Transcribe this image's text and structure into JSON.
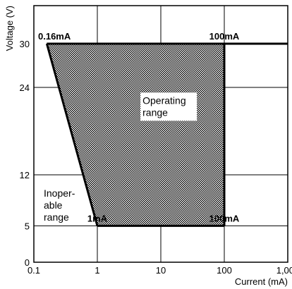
{
  "chart_data": {
    "type": "area",
    "xlabel": "Current (mA)",
    "ylabel": "Voltage (V)",
    "x_scale": "log",
    "xlim": [
      0.1,
      1000
    ],
    "ylim": [
      0,
      30
    ],
    "x_ticks": [
      {
        "value": 0.1,
        "label": "0.1"
      },
      {
        "value": 1,
        "label": "1"
      },
      {
        "value": 10,
        "label": "10"
      },
      {
        "value": 100,
        "label": "100"
      },
      {
        "value": 1000,
        "label": "1,000"
      }
    ],
    "y_ticks": [
      {
        "value": 0,
        "label": "0"
      },
      {
        "value": 5,
        "label": "5"
      },
      {
        "value": 12,
        "label": "12"
      },
      {
        "value": 24,
        "label": "24"
      },
      {
        "value": 30,
        "label": "30"
      }
    ],
    "grid": true,
    "operating_region": {
      "points": [
        {
          "x": 0.16,
          "y": 30
        },
        {
          "x": 100,
          "y": 30
        },
        {
          "x": 100,
          "y": 5
        },
        {
          "x": 1,
          "y": 5
        }
      ],
      "fill": "crosshatch"
    },
    "boundary_line": {
      "x": [
        0.16,
        1000
      ],
      "y": [
        30,
        30
      ]
    },
    "annotations": [
      {
        "text": "0.16mA",
        "x": 0.16,
        "y": 30
      },
      {
        "text": "100mA",
        "x": 100,
        "y": 30
      },
      {
        "text": "1mA",
        "x": 1,
        "y": 5
      },
      {
        "text": "100mA",
        "x": 100,
        "y": 5
      }
    ],
    "region_labels": {
      "operating_line1": "Operating",
      "operating_line2": "range",
      "inoperable_line1": "Inoper-",
      "inoperable_line2": "able",
      "inoperable_line3": "range"
    },
    "colors": {
      "line": "#000000",
      "background": "#ffffff",
      "label_box": "#ffffff"
    }
  }
}
